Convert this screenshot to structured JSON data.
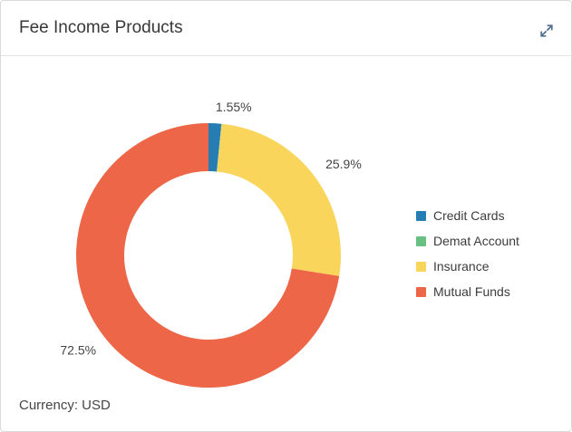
{
  "header": {
    "title": "Fee Income Products"
  },
  "footer": {
    "currency_label": "Currency: USD"
  },
  "icons": {
    "expand_icon_color": "#4f6f8f"
  },
  "chart_data": {
    "type": "pie",
    "title": "Fee Income Products",
    "donut": true,
    "start_angle_deg": 0,
    "direction": "clockwise",
    "legend_position": "right",
    "slices": [
      {
        "label": "Credit Cards",
        "value": 1.55,
        "display": "1.55%",
        "color": "#267db3"
      },
      {
        "label": "Demat Account",
        "value": 0.05,
        "display": "",
        "color": "#68c182"
      },
      {
        "label": "Insurance",
        "value": 25.9,
        "display": "25.9%",
        "color": "#fad55c"
      },
      {
        "label": "Mutual Funds",
        "value": 72.5,
        "display": "72.5%",
        "color": "#ed6647"
      }
    ]
  }
}
